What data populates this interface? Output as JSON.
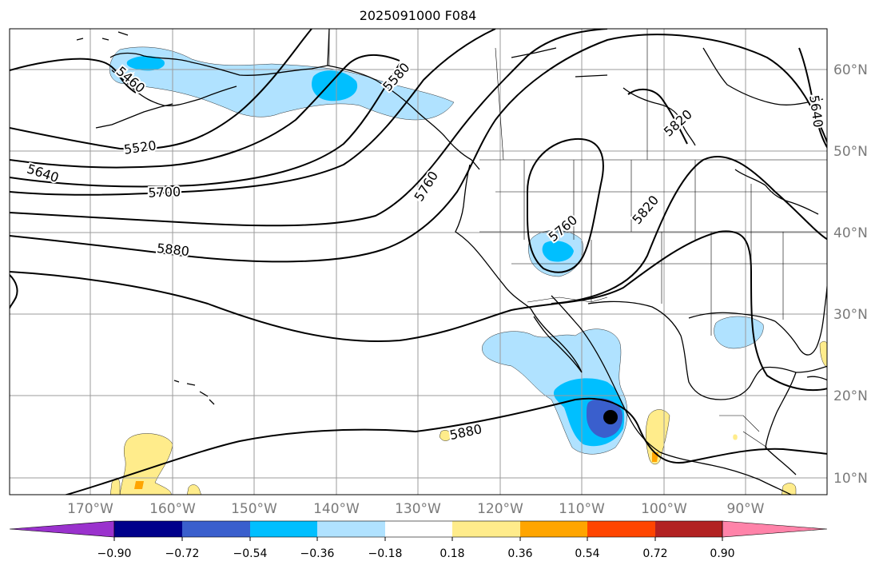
{
  "title": "2025091000 F084",
  "lat_labels": [
    "10°N",
    "20°N",
    "30°N",
    "40°N",
    "50°N",
    "60°N"
  ],
  "lon_labels": [
    "170°W",
    "160°W",
    "150°W",
    "140°W",
    "130°W",
    "120°W",
    "110°W",
    "100°W",
    "90°W"
  ],
  "colorbar": {
    "ticks": [
      "−0.90",
      "−0.72",
      "−0.54",
      "−0.36",
      "−0.18",
      "0.18",
      "0.36",
      "0.54",
      "0.72",
      "0.90"
    ],
    "colors": [
      "#9a32cd",
      "#00008b",
      "#3a5fcd",
      "#00bfff",
      "#b0e2ff",
      "#ffffff",
      "#ffec8b",
      "#ffa500",
      "#ff4500",
      "#b22222",
      "#ff83a9",
      "#ff83a9"
    ]
  },
  "contour_labels": [
    {
      "text": "5460"
    },
    {
      "text": "5520"
    },
    {
      "text": "5580"
    },
    {
      "text": "5640"
    },
    {
      "text": "5640"
    },
    {
      "text": "5700"
    },
    {
      "text": "5760"
    },
    {
      "text": "5760"
    },
    {
      "text": "5820"
    },
    {
      "text": "5820"
    },
    {
      "text": "5880"
    },
    {
      "text": "5880"
    }
  ],
  "shading_colors": {
    "light_blue": "#b0e2ff",
    "deep_sky": "#00bfff",
    "royal": "#3a5fcd",
    "yellow": "#ffec8b",
    "orange": "#ffa500",
    "storm": "#000000"
  }
}
